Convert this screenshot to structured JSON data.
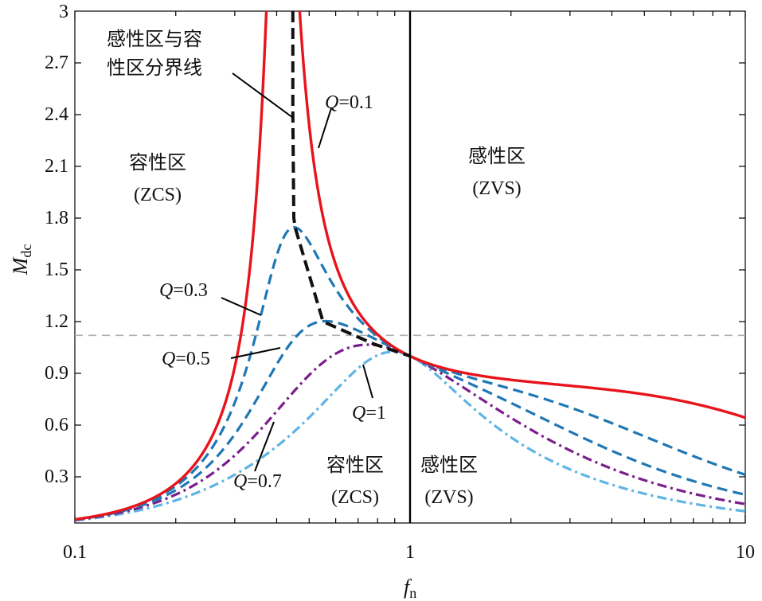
{
  "chart_data": {
    "type": "line",
    "x_scale": "log",
    "xlim": [
      0.1,
      10
    ],
    "ylim": [
      0.04,
      3
    ],
    "xlabel": "f",
    "xlabel_sub": "n",
    "ylabel": "M",
    "ylabel_sub": "dc",
    "x_ticks": [
      "0.1",
      "1",
      "10"
    ],
    "y_ticks": [
      "0.3",
      "0.6",
      "0.9",
      "1.2",
      "1.5",
      "1.8",
      "2.1",
      "2.4",
      "2.7",
      "3"
    ],
    "ln": 5,
    "series": [
      {
        "name": "Q=0.1",
        "Q": 0.1,
        "color": "#e8141b",
        "dash": "solid"
      },
      {
        "name": "Q=0.3",
        "Q": 0.3,
        "color": "#1f77b4",
        "dash": "dashed"
      },
      {
        "name": "Q=0.5",
        "Q": 0.5,
        "color": "#1f77b4",
        "dash": "dashed"
      },
      {
        "name": "Q=0.7",
        "Q": 0.7,
        "color": "#7b1e8c",
        "dash": "dashdot"
      },
      {
        "name": "Q=1",
        "Q": 1.0,
        "color": "#5fb4e4",
        "dash": "dashdot"
      }
    ],
    "boundary_line": {
      "name": "感性区与容性区分界线",
      "color": "#111111",
      "points": [
        [
          0.447,
          3.0
        ],
        [
          0.447,
          2.4
        ],
        [
          0.45,
          1.8
        ],
        [
          0.455,
          1.74
        ],
        [
          0.55,
          1.2
        ],
        [
          0.78,
          1.07
        ],
        [
          1.0,
          1.0
        ]
      ]
    },
    "reference_line": {
      "y": 1.12,
      "color": "#b0b0b0"
    },
    "divider_x": 1.0,
    "annotations": {
      "boundary_label_line1": "感性区与容",
      "boundary_label_line2": "性区分界线",
      "q01_italic": "Q",
      "q01_value": "=0.1",
      "q03_italic": "Q",
      "q03_value": "=0.3",
      "q05_italic": "Q",
      "q05_value": "=0.5",
      "q07_italic": "Q",
      "q07_value": "=0.7",
      "q1_italic": "Q",
      "q1_value": "=1",
      "cap_region_upper": "容性区",
      "cap_region_upper_mode": "(ZCS)",
      "ind_region_upper": "感性区",
      "ind_region_upper_mode": "(ZVS)",
      "cap_region_lower": "容性区",
      "cap_region_lower_mode": "(ZCS)",
      "ind_region_lower": "感性区",
      "ind_region_lower_mode": "(ZVS)"
    }
  }
}
